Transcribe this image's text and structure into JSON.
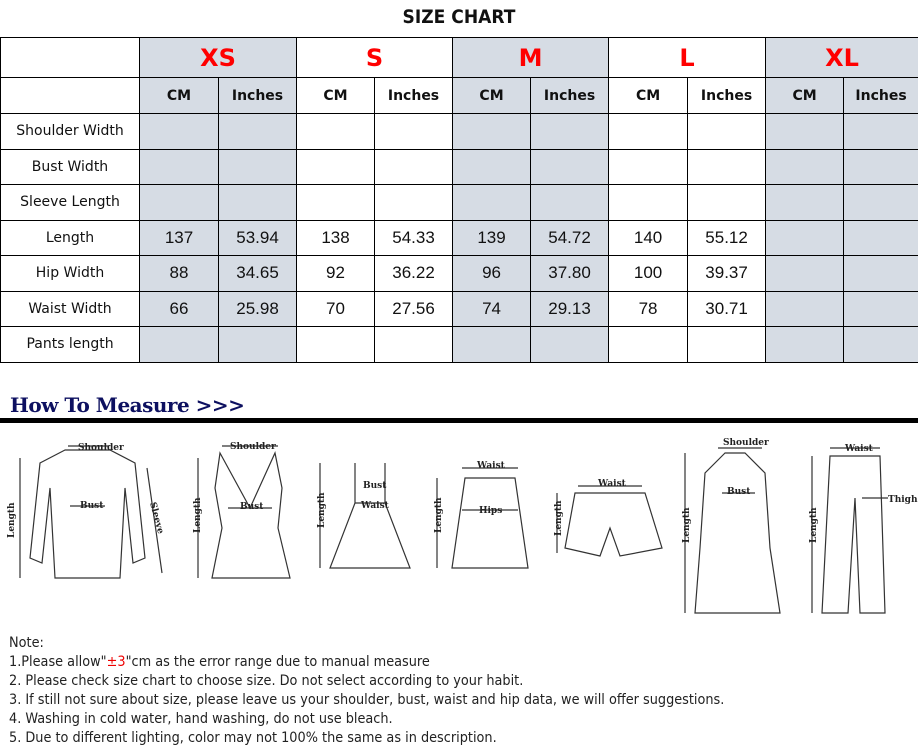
{
  "title": "SIZE CHART",
  "sizes": [
    "XS",
    "S",
    "M",
    "L",
    "XL"
  ],
  "units": [
    "CM",
    "Inches"
  ],
  "rows": [
    {
      "label": "Shoulder Width",
      "values": [
        "",
        "",
        "",
        "",
        "",
        "",
        "",
        "",
        "",
        ""
      ]
    },
    {
      "label": "Bust Width",
      "values": [
        "",
        "",
        "",
        "",
        "",
        "",
        "",
        "",
        "",
        ""
      ]
    },
    {
      "label": "Sleeve Length",
      "values": [
        "",
        "",
        "",
        "",
        "",
        "",
        "",
        "",
        "",
        ""
      ]
    },
    {
      "label": "Length",
      "values": [
        "137",
        "53.94",
        "138",
        "54.33",
        "139",
        "54.72",
        "140",
        "55.12",
        "",
        ""
      ]
    },
    {
      "label": "Hip Width",
      "values": [
        "88",
        "34.65",
        "92",
        "36.22",
        "96",
        "37.80",
        "100",
        "39.37",
        "",
        ""
      ]
    },
    {
      "label": "Waist Width",
      "values": [
        "66",
        "25.98",
        "70",
        "27.56",
        "74",
        "29.13",
        "78",
        "30.71",
        "",
        ""
      ]
    },
    {
      "label": "Pants length",
      "values": [
        "",
        "",
        "",
        "",
        "",
        "",
        "",
        "",
        "",
        ""
      ]
    }
  ],
  "colors": {
    "size_label": "#ff0000",
    "shaded_column": "#d6dce4",
    "heading": "#0d1060"
  },
  "how_to_measure": "How To Measure >>>",
  "illustration_labels": {
    "shoulder": "Shoulder",
    "bust": "Bust",
    "sleeve": "Sleeve",
    "length": "Length",
    "waist": "Waist",
    "hips": "Hips",
    "thigh": "Thigh"
  },
  "notes": {
    "heading": "Note:",
    "n1_pre": "1.Please allow\"",
    "n1_red": "±3",
    "n1_post": "\"cm as the error range due to manual measure",
    "n2": "2. Please check size chart to choose size. Do not select according to your habit.",
    "n3": "3. If still not sure about size, please leave us your shoulder, bust, waist and hip data, we will offer suggestions.",
    "n4": "4. Washing in cold water, hand washing, do not use bleach.",
    "n5": "5. Due to different lighting, color may not 100% the same as in description."
  }
}
